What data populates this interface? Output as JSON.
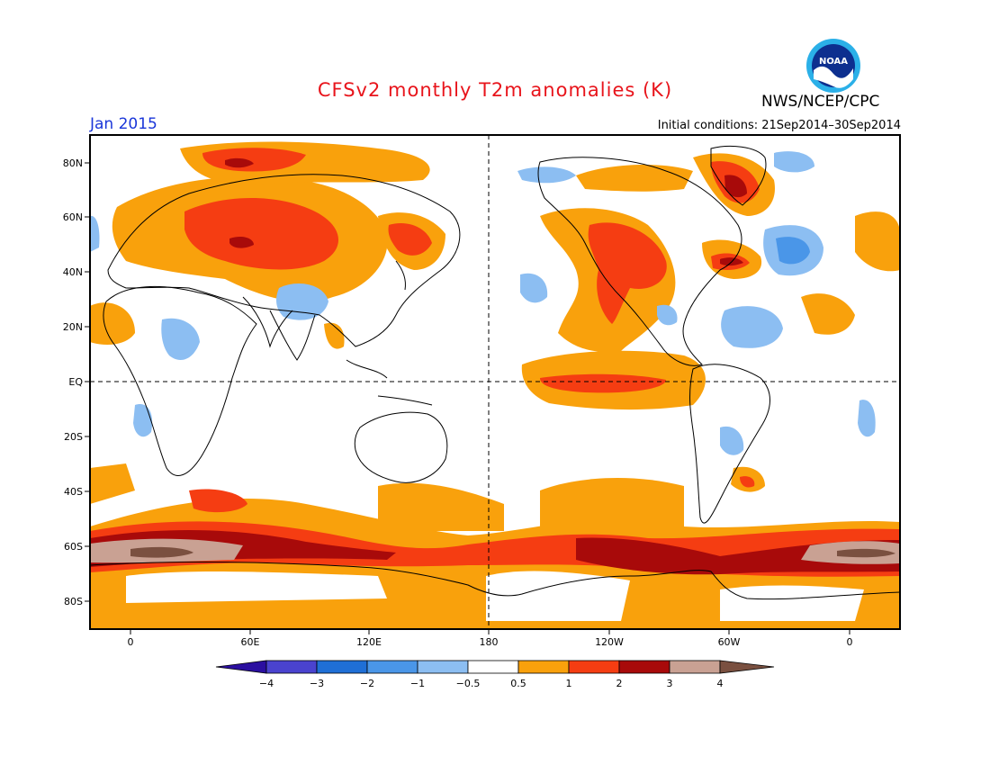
{
  "title": "CFSv2 monthly T2m anomalies (K)",
  "agency": "NWS/NCEP/CPC",
  "logo_text": "NOAA",
  "month": "Jan 2015",
  "initial_conditions": "Initial conditions: 21Sep2014–30Sep2014",
  "lat_labels": [
    "80N",
    "60N",
    "40N",
    "20N",
    "EQ",
    "20S",
    "40S",
    "60S",
    "80S"
  ],
  "lon_labels": [
    "0",
    "60E",
    "120E",
    "180",
    "120W",
    "60W",
    "0"
  ],
  "colorbar": {
    "labels": [
      "−4",
      "−3",
      "−2",
      "−1",
      "−0.5",
      "0.5",
      "1",
      "2",
      "3",
      "4"
    ],
    "colors": [
      "#2b0fa0",
      "#4a43cf",
      "#1f6fd6",
      "#4a96e8",
      "#8cbef2",
      "#ffffff",
      "#f9a10c",
      "#f53d12",
      "#a80a0a",
      "#c9a193",
      "#7a5040"
    ]
  }
}
